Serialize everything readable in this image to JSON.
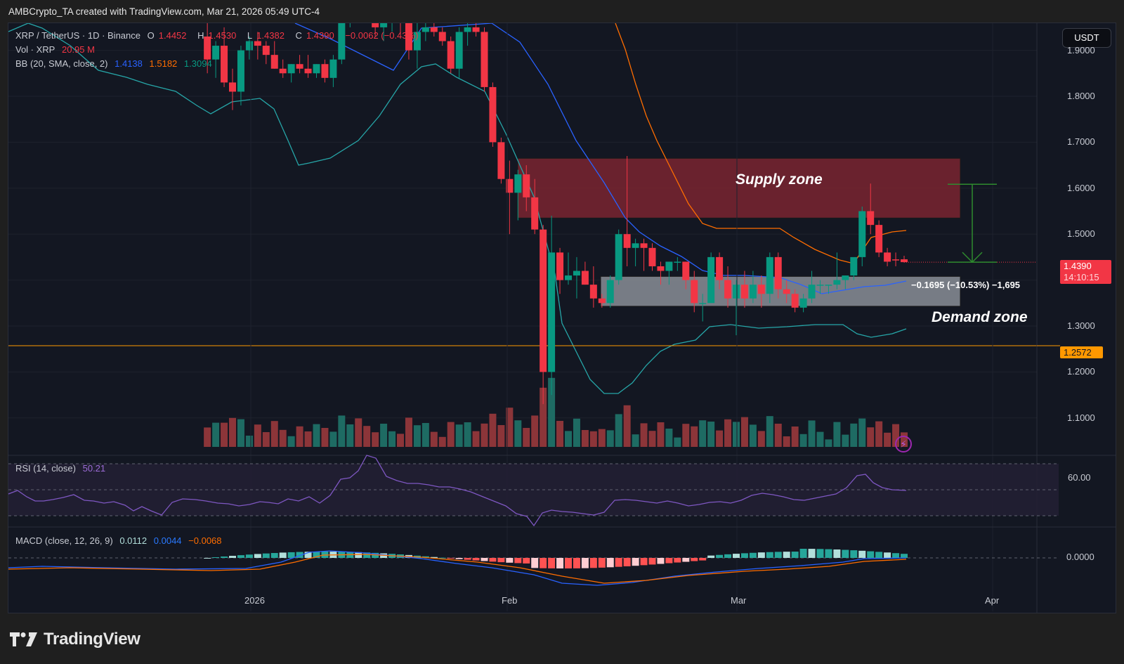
{
  "caption": "AMBCrypto_TA created with TradingView.com, Mar 21, 2026 05:49 UTC-4",
  "header": {
    "symbol": "XRP / TetherUS · 1D · Binance",
    "ohlc": {
      "o_label": "O",
      "o": "1.4452",
      "h_label": "H",
      "h": "1.4530",
      "l_label": "L",
      "l": "1.4382",
      "c_label": "C",
      "c": "1.4390",
      "change": "−0.0062 (−0.43%)"
    },
    "volume": {
      "label": "Vol · XRP",
      "value": "20.95 M"
    },
    "bb": {
      "label": "BB (20, SMA, close, 2)",
      "basis": "1.4138",
      "upper": "1.5182",
      "lower": "1.3094"
    }
  },
  "currency_button": "USDT",
  "price_axis": {
    "ticks": [
      "1.9000",
      "1.8000",
      "1.7000",
      "1.6000",
      "1.5000",
      "1.4000",
      "1.3000",
      "1.2000",
      "1.1000"
    ]
  },
  "last_price_badge": {
    "price": "1.4390",
    "countdown": "14:10:15",
    "color": "#f23645"
  },
  "hline_badge": {
    "price": "1.2572",
    "color": "#ff9800"
  },
  "time_axis": {
    "ticks": [
      "2026",
      "Feb",
      "Mar",
      "Apr"
    ]
  },
  "annotations": {
    "supply_zone": "Supply zone",
    "demand_zone": "Demand zone",
    "measure": "−0.1695 (−10.53%) −1,695"
  },
  "rsi": {
    "label": "RSI (14, close)",
    "value": "50.21",
    "axis_tick": "60.00"
  },
  "macd": {
    "label": "MACD (close, 12, 26, 9)",
    "hist": "0.0112",
    "macd": "0.0044",
    "signal": "−0.0068",
    "axis_tick": "0.0000"
  },
  "brand": "TradingView",
  "colors": {
    "up": "#089981",
    "down": "#f23645",
    "bb_basis": "#2962ff",
    "bb_upper": "#ff6d00",
    "bb_lower": "#26a6a8",
    "hline": "#ff9800",
    "rsi": "#7e57c2",
    "supply": "#7a2530",
    "demand": "#8a8e96"
  },
  "chart_data": [
    {
      "type": "candlestick",
      "title": "XRP / TetherUS · 1D · Binance",
      "ylabel": "USDT",
      "ylim": [
        1.05,
        1.98
      ],
      "x_ticks": [
        "2026",
        "Feb",
        "Mar",
        "Apr"
      ],
      "candles": [
        {
          "o": 1.93,
          "h": 1.97,
          "l": 1.85,
          "c": 1.88
        },
        {
          "o": 1.88,
          "h": 1.92,
          "l": 1.84,
          "c": 1.91
        },
        {
          "o": 1.91,
          "h": 1.95,
          "l": 1.82,
          "c": 1.83
        },
        {
          "o": 1.83,
          "h": 1.86,
          "l": 1.77,
          "c": 1.81
        },
        {
          "o": 1.81,
          "h": 1.91,
          "l": 1.78,
          "c": 1.9
        },
        {
          "o": 1.9,
          "h": 1.93,
          "l": 1.88,
          "c": 1.92
        },
        {
          "o": 1.92,
          "h": 1.94,
          "l": 1.88,
          "c": 1.91
        },
        {
          "o": 1.91,
          "h": 1.92,
          "l": 1.87,
          "c": 1.89
        },
        {
          "o": 1.89,
          "h": 1.92,
          "l": 1.86,
          "c": 1.86
        },
        {
          "o": 1.86,
          "h": 1.88,
          "l": 1.84,
          "c": 1.85
        },
        {
          "o": 1.85,
          "h": 1.87,
          "l": 1.83,
          "c": 1.87
        },
        {
          "o": 1.87,
          "h": 1.89,
          "l": 1.85,
          "c": 1.86
        },
        {
          "o": 1.86,
          "h": 1.89,
          "l": 1.84,
          "c": 1.85
        },
        {
          "o": 1.85,
          "h": 1.87,
          "l": 1.84,
          "c": 1.87
        },
        {
          "o": 1.87,
          "h": 1.88,
          "l": 1.83,
          "c": 1.84
        },
        {
          "o": 1.84,
          "h": 1.89,
          "l": 1.82,
          "c": 1.88
        },
        {
          "o": 1.88,
          "h": 1.99,
          "l": 1.87,
          "c": 1.98
        },
        {
          "o": 1.98,
          "h": 2.05,
          "l": 1.95,
          "c": 2.02
        },
        {
          "o": 2.02,
          "h": 2.04,
          "l": 1.97,
          "c": 1.99
        },
        {
          "o": 1.99,
          "h": 2.02,
          "l": 1.96,
          "c": 1.97
        },
        {
          "o": 1.97,
          "h": 1.99,
          "l": 1.93,
          "c": 1.95
        },
        {
          "o": 1.95,
          "h": 1.97,
          "l": 1.92,
          "c": 1.96
        },
        {
          "o": 1.96,
          "h": 1.98,
          "l": 1.94,
          "c": 1.97
        },
        {
          "o": 1.97,
          "h": 2.0,
          "l": 1.93,
          "c": 1.96
        },
        {
          "o": 1.96,
          "h": 2.0,
          "l": 1.88,
          "c": 1.9
        },
        {
          "o": 1.9,
          "h": 1.97,
          "l": 1.86,
          "c": 1.94
        },
        {
          "o": 1.94,
          "h": 1.97,
          "l": 1.92,
          "c": 1.95
        },
        {
          "o": 1.95,
          "h": 1.96,
          "l": 1.93,
          "c": 1.94
        },
        {
          "o": 1.94,
          "h": 1.95,
          "l": 1.91,
          "c": 1.92
        },
        {
          "o": 1.92,
          "h": 1.93,
          "l": 1.85,
          "c": 1.86
        },
        {
          "o": 1.86,
          "h": 1.95,
          "l": 1.84,
          "c": 1.94
        },
        {
          "o": 1.94,
          "h": 1.96,
          "l": 1.91,
          "c": 1.95
        },
        {
          "o": 1.95,
          "h": 1.96,
          "l": 1.93,
          "c": 1.94
        },
        {
          "o": 1.94,
          "h": 1.95,
          "l": 1.81,
          "c": 1.82
        },
        {
          "o": 1.82,
          "h": 1.83,
          "l": 1.69,
          "c": 1.7
        },
        {
          "o": 1.7,
          "h": 1.71,
          "l": 1.61,
          "c": 1.62
        },
        {
          "o": 1.62,
          "h": 1.66,
          "l": 1.5,
          "c": 1.59
        },
        {
          "o": 1.59,
          "h": 1.64,
          "l": 1.53,
          "c": 1.63
        },
        {
          "o": 1.63,
          "h": 1.65,
          "l": 1.55,
          "c": 1.58
        },
        {
          "o": 1.58,
          "h": 1.62,
          "l": 1.5,
          "c": 1.51
        },
        {
          "o": 1.51,
          "h": 1.52,
          "l": 1.13,
          "c": 1.2
        },
        {
          "o": 1.2,
          "h": 1.54,
          "l": 1.15,
          "c": 1.46
        },
        {
          "o": 1.46,
          "h": 1.47,
          "l": 1.37,
          "c": 1.4
        },
        {
          "o": 1.4,
          "h": 1.46,
          "l": 1.39,
          "c": 1.41
        },
        {
          "o": 1.41,
          "h": 1.45,
          "l": 1.36,
          "c": 1.42
        },
        {
          "o": 1.42,
          "h": 1.44,
          "l": 1.39,
          "c": 1.39
        },
        {
          "o": 1.39,
          "h": 1.43,
          "l": 1.34,
          "c": 1.36
        },
        {
          "o": 1.36,
          "h": 1.37,
          "l": 1.34,
          "c": 1.35
        },
        {
          "o": 1.35,
          "h": 1.41,
          "l": 1.34,
          "c": 1.4
        },
        {
          "o": 1.4,
          "h": 1.51,
          "l": 1.39,
          "c": 1.5
        },
        {
          "o": 1.5,
          "h": 1.67,
          "l": 1.43,
          "c": 1.47
        },
        {
          "o": 1.47,
          "h": 1.49,
          "l": 1.43,
          "c": 1.48
        },
        {
          "o": 1.48,
          "h": 1.49,
          "l": 1.42,
          "c": 1.47
        },
        {
          "o": 1.47,
          "h": 1.48,
          "l": 1.42,
          "c": 1.43
        },
        {
          "o": 1.43,
          "h": 1.44,
          "l": 1.39,
          "c": 1.42
        },
        {
          "o": 1.42,
          "h": 1.44,
          "l": 1.39,
          "c": 1.44
        },
        {
          "o": 1.44,
          "h": 1.45,
          "l": 1.42,
          "c": 1.44
        },
        {
          "o": 1.44,
          "h": 1.44,
          "l": 1.38,
          "c": 1.4
        },
        {
          "o": 1.4,
          "h": 1.42,
          "l": 1.33,
          "c": 1.35
        },
        {
          "o": 1.35,
          "h": 1.37,
          "l": 1.31,
          "c": 1.35
        },
        {
          "o": 1.35,
          "h": 1.46,
          "l": 1.36,
          "c": 1.45
        },
        {
          "o": 1.45,
          "h": 1.46,
          "l": 1.38,
          "c": 1.4
        },
        {
          "o": 1.4,
          "h": 1.43,
          "l": 1.34,
          "c": 1.36
        },
        {
          "o": 1.36,
          "h": 1.4,
          "l": 1.28,
          "c": 1.39
        },
        {
          "o": 1.39,
          "h": 1.42,
          "l": 1.34,
          "c": 1.36
        },
        {
          "o": 1.36,
          "h": 1.42,
          "l": 1.35,
          "c": 1.39
        },
        {
          "o": 1.39,
          "h": 1.41,
          "l": 1.34,
          "c": 1.37
        },
        {
          "o": 1.37,
          "h": 1.46,
          "l": 1.35,
          "c": 1.45
        },
        {
          "o": 1.45,
          "h": 1.46,
          "l": 1.36,
          "c": 1.38
        },
        {
          "o": 1.38,
          "h": 1.4,
          "l": 1.35,
          "c": 1.37
        },
        {
          "o": 1.37,
          "h": 1.38,
          "l": 1.33,
          "c": 1.34
        },
        {
          "o": 1.34,
          "h": 1.37,
          "l": 1.33,
          "c": 1.36
        },
        {
          "o": 1.36,
          "h": 1.42,
          "l": 1.35,
          "c": 1.39
        },
        {
          "o": 1.39,
          "h": 1.4,
          "l": 1.37,
          "c": 1.39
        },
        {
          "o": 1.39,
          "h": 1.39,
          "l": 1.37,
          "c": 1.39
        },
        {
          "o": 1.39,
          "h": 1.46,
          "l": 1.38,
          "c": 1.4
        },
        {
          "o": 1.4,
          "h": 1.41,
          "l": 1.38,
          "c": 1.41
        },
        {
          "o": 1.41,
          "h": 1.44,
          "l": 1.4,
          "c": 1.45
        },
        {
          "o": 1.45,
          "h": 1.56,
          "l": 1.43,
          "c": 1.55
        },
        {
          "o": 1.55,
          "h": 1.61,
          "l": 1.5,
          "c": 1.52
        },
        {
          "o": 1.52,
          "h": 1.53,
          "l": 1.45,
          "c": 1.46
        },
        {
          "o": 1.46,
          "h": 1.47,
          "l": 1.43,
          "c": 1.44
        },
        {
          "o": 1.445,
          "h": 1.46,
          "l": 1.43,
          "c": 1.444
        },
        {
          "o": 1.4452,
          "h": 1.453,
          "l": 1.4382,
          "c": 1.439
        }
      ],
      "bollinger": {
        "basis_last": 1.4138,
        "upper_last": 1.5182,
        "lower_last": 1.3094
      },
      "horizontal_line": 1.2572,
      "zones": [
        {
          "name": "Supply zone",
          "from": 1.535,
          "to": 1.665
        },
        {
          "name": "Demand zone",
          "from": 1.343,
          "to": 1.408
        }
      ],
      "measure": {
        "from": 1.6085,
        "to": 1.439,
        "change": -0.1695,
        "pct": -10.53
      }
    },
    {
      "type": "bar",
      "title": "Vol · XRP",
      "last_value": "20.95 M"
    },
    {
      "type": "line",
      "title": "RSI (14, close)",
      "last_value": 50.21,
      "levels": [
        70,
        50,
        30
      ],
      "y_ticks": [
        "60.00"
      ]
    },
    {
      "type": "bar+line",
      "title": "MACD (close, 12, 26, 9)",
      "histogram": 0.0112,
      "macd": 0.0044,
      "signal": -0.0068,
      "y_ticks": [
        "0.0000"
      ]
    }
  ]
}
